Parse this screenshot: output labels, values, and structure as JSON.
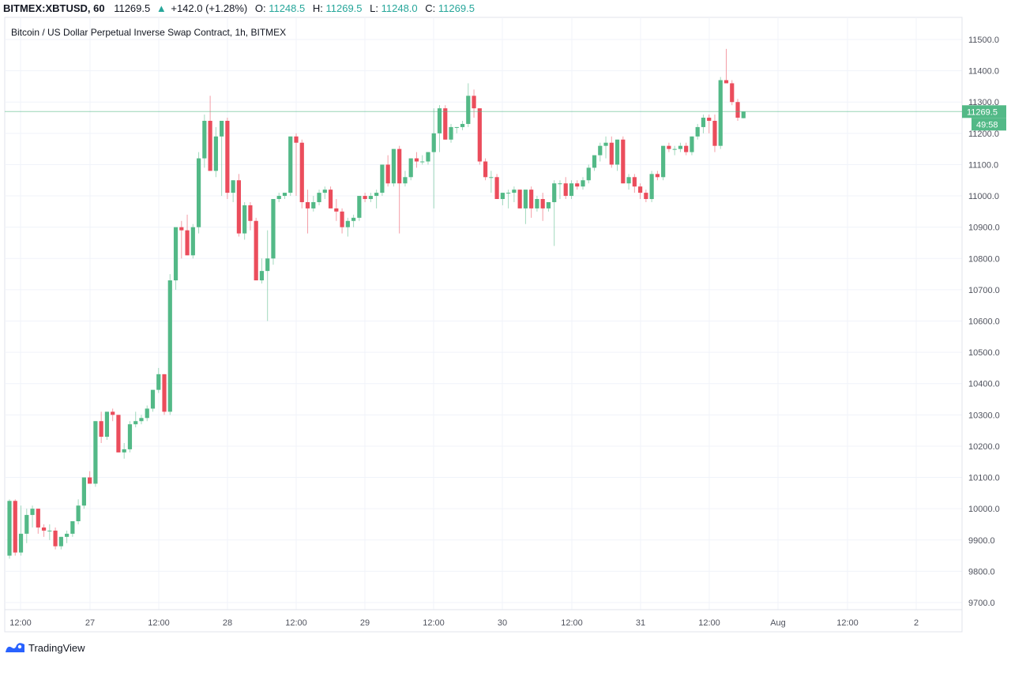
{
  "header": {
    "symbol": "BITMEX:XBTUSD, 60",
    "last": "11269.5",
    "change": "+142.0 (+1.28%)",
    "o_label": "O:",
    "o_value": "11248.5",
    "h_label": "H:",
    "h_value": "11269.5",
    "l_label": "L:",
    "l_value": "11248.0",
    "c_label": "C:",
    "c_value": "11269.5",
    "direction_icon": "triangle-up-icon"
  },
  "legend_title": "Bitcoin / US Dollar Perpetual Inverse Swap Contract, 1h, BITMEX",
  "price_label": "11269.5",
  "countdown_label": "49:58",
  "branding": {
    "name": "TradingView",
    "icon": "tradingview-logo-icon"
  },
  "colors": {
    "up": "#53b987",
    "down": "#eb4d5c",
    "grid": "#f0f3fa",
    "axis_text": "#50535e",
    "price_line": "#53b987"
  },
  "chart_data": {
    "type": "candlestick",
    "title": "Bitcoin / US Dollar Perpetual Inverse Swap Contract, 1h, BITMEX",
    "ylim": [
      9700,
      11500
    ],
    "y_ticks": [
      "11500.0",
      "11400.0",
      "11300.0",
      "11200.0",
      "11100.0",
      "11000.0",
      "10900.0",
      "10800.0",
      "10700.0",
      "10600.0",
      "10500.0",
      "10400.0",
      "10300.0",
      "10200.0",
      "10100.0",
      "10000.0",
      "9900.0",
      "9800.0",
      "9700.0"
    ],
    "x_ticks": [
      "12:00",
      "27",
      "12:00",
      "28",
      "12:00",
      "29",
      "12:00",
      "30",
      "12:00",
      "31",
      "12:00",
      "Aug",
      "12:00",
      "2"
    ],
    "grid": true,
    "last_price": 11269.5,
    "candles_ohlc": [
      [
        9850,
        10030,
        9840,
        10025
      ],
      [
        10025,
        10030,
        9850,
        9860
      ],
      [
        9860,
        10010,
        9850,
        9920
      ],
      [
        9920,
        10000,
        9890,
        9980
      ],
      [
        9980,
        10010,
        9940,
        10000
      ],
      [
        10000,
        10000,
        9920,
        9940
      ],
      [
        9940,
        9950,
        9910,
        9930
      ],
      [
        9930,
        9950,
        9900,
        9930
      ],
      [
        9930,
        9940,
        9870,
        9880
      ],
      [
        9880,
        9910,
        9870,
        9910
      ],
      [
        9910,
        9930,
        9890,
        9920
      ],
      [
        9920,
        9960,
        9910,
        9960
      ],
      [
        9960,
        10030,
        9950,
        10010
      ],
      [
        10010,
        10100,
        10000,
        10100
      ],
      [
        10100,
        10120,
        10080,
        10080
      ],
      [
        10080,
        10280,
        10070,
        10280
      ],
      [
        10280,
        10310,
        10210,
        10230
      ],
      [
        10230,
        10310,
        10220,
        10310
      ],
      [
        10310,
        10320,
        10280,
        10300
      ],
      [
        10300,
        10300,
        10180,
        10180
      ],
      [
        10180,
        10210,
        10160,
        10190
      ],
      [
        10190,
        10280,
        10180,
        10270
      ],
      [
        10270,
        10310,
        10260,
        10280
      ],
      [
        10280,
        10300,
        10270,
        10290
      ],
      [
        10290,
        10330,
        10280,
        10320
      ],
      [
        10320,
        10380,
        10310,
        10380
      ],
      [
        10380,
        10450,
        10370,
        10430
      ],
      [
        10430,
        10430,
        10300,
        10310
      ],
      [
        10310,
        10750,
        10300,
        10730
      ],
      [
        10730,
        10890,
        10700,
        10900
      ],
      [
        10900,
        10920,
        10800,
        10890
      ],
      [
        10890,
        10940,
        10810,
        10810
      ],
      [
        10810,
        10910,
        10800,
        10900
      ],
      [
        10900,
        11140,
        10880,
        11120
      ],
      [
        11120,
        11260,
        11090,
        11240
      ],
      [
        11240,
        11320,
        11080,
        11080
      ],
      [
        11080,
        11220,
        11060,
        11190
      ],
      [
        11190,
        11240,
        11000,
        11240
      ],
      [
        11240,
        11250,
        10990,
        11010
      ],
      [
        11010,
        11050,
        10980,
        11050
      ],
      [
        11050,
        11070,
        10870,
        10880
      ],
      [
        10880,
        10980,
        10860,
        10970
      ],
      [
        10970,
        10980,
        10890,
        10920
      ],
      [
        10920,
        10930,
        10730,
        10730
      ],
      [
        10730,
        10800,
        10720,
        10760
      ],
      [
        10760,
        10890,
        10600,
        10800
      ],
      [
        10800,
        10990,
        10780,
        10990
      ],
      [
        10990,
        11010,
        10980,
        11000
      ],
      [
        11000,
        11010,
        10990,
        11010
      ],
      [
        11010,
        11190,
        11000,
        11190
      ],
      [
        11190,
        11200,
        11000,
        11170
      ],
      [
        11170,
        11180,
        10960,
        10980
      ],
      [
        10980,
        11020,
        10880,
        10960
      ],
      [
        10960,
        11000,
        10950,
        10980
      ],
      [
        10980,
        11020,
        10970,
        11010
      ],
      [
        11010,
        11030,
        10990,
        11020
      ],
      [
        11020,
        11030,
        10960,
        10960
      ],
      [
        10960,
        10990,
        10920,
        10950
      ],
      [
        10950,
        10960,
        10880,
        10900
      ],
      [
        10900,
        10930,
        10870,
        10920
      ],
      [
        10920,
        10940,
        10900,
        10930
      ],
      [
        10930,
        11000,
        10920,
        11000
      ],
      [
        11000,
        11010,
        10980,
        10990
      ],
      [
        10990,
        11010,
        10980,
        11000
      ],
      [
        11000,
        11020,
        10960,
        11010
      ],
      [
        11010,
        11100,
        11000,
        11100
      ],
      [
        11100,
        11130,
        11030,
        11040
      ],
      [
        11040,
        11150,
        11030,
        11150
      ],
      [
        11150,
        11160,
        10880,
        11040
      ],
      [
        11040,
        11080,
        11030,
        11060
      ],
      [
        11060,
        11120,
        11050,
        11120
      ],
      [
        11120,
        11140,
        11090,
        11110
      ],
      [
        11110,
        11130,
        11100,
        11110
      ],
      [
        11110,
        11140,
        11100,
        11140
      ],
      [
        11140,
        11280,
        10960,
        11200
      ],
      [
        11200,
        11290,
        11140,
        11280
      ],
      [
        11280,
        11290,
        11180,
        11180
      ],
      [
        11180,
        11230,
        11170,
        11220
      ],
      [
        11220,
        11220,
        11200,
        11220
      ],
      [
        11220,
        11240,
        11210,
        11230
      ],
      [
        11230,
        11360,
        11220,
        11320
      ],
      [
        11320,
        11340,
        11250,
        11280
      ],
      [
        11280,
        11280,
        11100,
        11110
      ],
      [
        11110,
        11120,
        11050,
        11060
      ],
      [
        11060,
        11080,
        11010,
        11060
      ],
      [
        11060,
        11070,
        10990,
        10990
      ],
      [
        10990,
        11010,
        10970,
        11010
      ],
      [
        11010,
        11020,
        10960,
        11010
      ],
      [
        11010,
        11030,
        10980,
        11020
      ],
      [
        11020,
        11020,
        10960,
        10960
      ],
      [
        10960,
        11010,
        10910,
        11020
      ],
      [
        11020,
        11030,
        10930,
        10960
      ],
      [
        10960,
        11000,
        10950,
        10990
      ],
      [
        10990,
        11010,
        10920,
        10960
      ],
      [
        10960,
        10980,
        10950,
        10980
      ],
      [
        10980,
        11050,
        10840,
        11040
      ],
      [
        11040,
        11050,
        10990,
        11040
      ],
      [
        11040,
        11060,
        10990,
        11000
      ],
      [
        11000,
        11050,
        10990,
        11040
      ],
      [
        11040,
        11050,
        11020,
        11030
      ],
      [
        11030,
        11060,
        11020,
        11050
      ],
      [
        11050,
        11100,
        11040,
        11090
      ],
      [
        11090,
        11130,
        11080,
        11130
      ],
      [
        11130,
        11170,
        11110,
        11160
      ],
      [
        11160,
        11190,
        11120,
        11170
      ],
      [
        11170,
        11190,
        11090,
        11100
      ],
      [
        11100,
        11180,
        11080,
        11180
      ],
      [
        11180,
        11190,
        11040,
        11040
      ],
      [
        11040,
        11070,
        11020,
        11060
      ],
      [
        11060,
        11070,
        11010,
        11030
      ],
      [
        11030,
        11040,
        10990,
        11010
      ],
      [
        11010,
        11020,
        10980,
        10990
      ],
      [
        10990,
        11080,
        10980,
        11070
      ],
      [
        11070,
        11080,
        11050,
        11060
      ],
      [
        11060,
        11160,
        11050,
        11160
      ],
      [
        11160,
        11170,
        11140,
        11150
      ],
      [
        11150,
        11160,
        11130,
        11150
      ],
      [
        11150,
        11170,
        11140,
        11160
      ],
      [
        11160,
        11170,
        11130,
        11140
      ],
      [
        11140,
        11190,
        11130,
        11190
      ],
      [
        11190,
        11230,
        11180,
        11220
      ],
      [
        11220,
        11260,
        11200,
        11250
      ],
      [
        11250,
        11260,
        11200,
        11240
      ],
      [
        11240,
        11260,
        11140,
        11160
      ],
      [
        11160,
        11380,
        11150,
        11370
      ],
      [
        11370,
        11470,
        11360,
        11360
      ],
      [
        11360,
        11370,
        11290,
        11300
      ],
      [
        11300,
        11310,
        11240,
        11250
      ],
      [
        11248.5,
        11269.5,
        11248.0,
        11269.5
      ]
    ]
  }
}
